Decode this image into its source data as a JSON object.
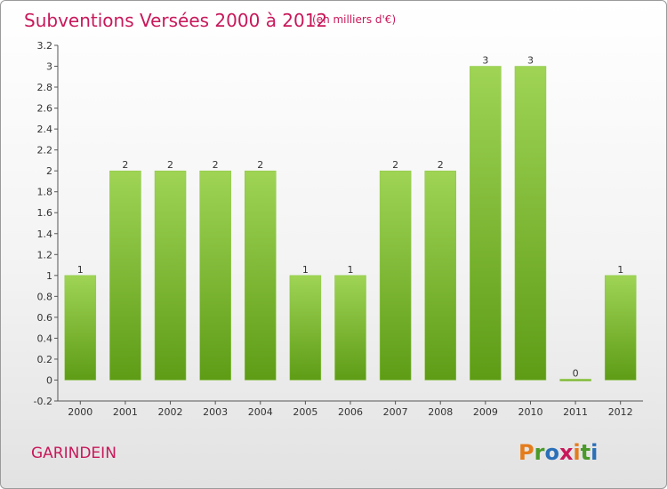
{
  "header": {
    "title": "Subventions Versées 2000 à 2012",
    "subtitle": "(en milliers d'€)"
  },
  "footer": {
    "commune": "GARINDEIN",
    "logo_text": "Proxiti"
  },
  "colors": {
    "title": "#c8185a",
    "bar_top": "#9fd455",
    "bar_bottom": "#5e9c16",
    "logo_letters": [
      "#e47c1c",
      "#4a9a2a",
      "#2a6fb8",
      "#c8185a",
      "#e47c1c",
      "#4a9a2a",
      "#2a6fb8"
    ]
  },
  "chart_data": {
    "type": "bar",
    "title": "Subventions Versées 2000 à 2012",
    "subtitle": "(en milliers d'€)",
    "categories": [
      "2000",
      "2001",
      "2002",
      "2003",
      "2004",
      "2005",
      "2006",
      "2007",
      "2008",
      "2009",
      "2010",
      "2011",
      "2012"
    ],
    "values": [
      1,
      2,
      2,
      2,
      2,
      1,
      1,
      2,
      2,
      3,
      3,
      0,
      1
    ],
    "data_labels": [
      "1",
      "2",
      "2",
      "2",
      "2",
      "1",
      "1",
      "2",
      "2",
      "3",
      "3",
      "0",
      "1"
    ],
    "ylim": [
      -0.2,
      3.2
    ],
    "yticks": [
      "3.2",
      "3",
      "2.8",
      "2.6",
      "2.4",
      "2.2",
      "2",
      "1.8",
      "1.6",
      "1.4",
      "1.2",
      "1",
      "0.8",
      "0.6",
      "0.4",
      "0.2",
      "0",
      "-0.2"
    ],
    "ytick_values": [
      3.2,
      3,
      2.8,
      2.6,
      2.4,
      2.2,
      2,
      1.8,
      1.6,
      1.4,
      1.2,
      1,
      0.8,
      0.6,
      0.4,
      0.2,
      0,
      -0.2
    ],
    "grid": false,
    "legend": "none"
  }
}
